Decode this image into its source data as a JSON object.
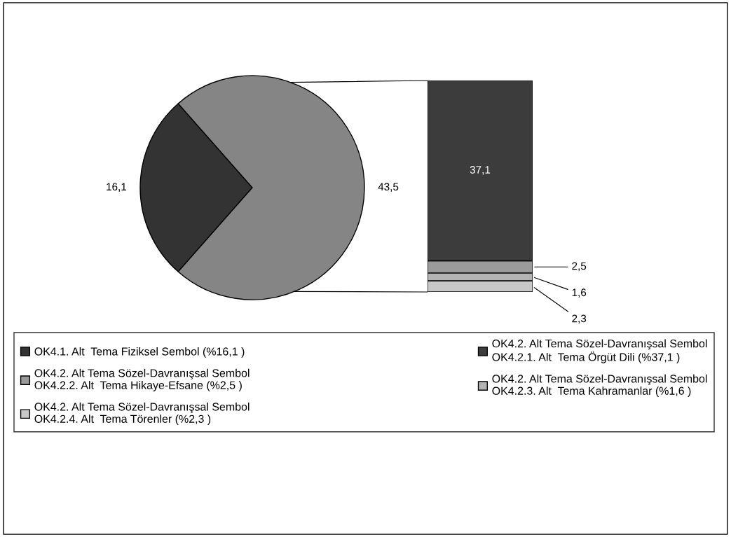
{
  "chart_data": [
    {
      "type": "pie",
      "categories": [
        "OK4.1. Alt  Tema Fiziksel Sembol (%16,1 )",
        null
      ],
      "values": [
        16.1,
        43.5
      ],
      "colors": [
        "#333333",
        "#858585"
      ],
      "value_labels": [
        "16,1",
        "43,5"
      ],
      "legend": "bottom"
    },
    {
      "type": "bar",
      "stacked": true,
      "categories": [
        null
      ],
      "legend": "bottom",
      "series": [
        {
          "name": "OK4.2. Alt Tema Sözel-Davranışsal Sembol\nOK4.2.4. Alt  Tema Törenler (%2,3 )",
          "color": "#c8c8c8",
          "values": [
            2.3
          ],
          "value_labels": [
            "2,3"
          ]
        },
        {
          "name": "OK4.2. Alt Tema Sözel-Davranışsal Sembol\nOK4.2.3. Alt  Tema Kahramanlar (%1,6 )",
          "color": "#b4b4b4",
          "values": [
            1.6
          ],
          "value_labels": [
            "1,6"
          ]
        },
        {
          "name": "OK4.2. Alt Tema Sözel-Davranışsal Sembol\nOK4.2.2. Alt  Tema Hikaye-Efsane (%2,5 )",
          "color": "#9a9a9a",
          "values": [
            2.5
          ],
          "value_labels": [
            "2,5"
          ]
        },
        {
          "name": "OK4.2. Alt Tema Sözel-Davranışsal Sembol\nOK4.2.1. Alt  Tema Örgüt Dili (%37,1 )",
          "color": "#3c3c3c",
          "values": [
            37.1
          ],
          "value_labels": [
            "37,1"
          ]
        }
      ]
    }
  ]
}
